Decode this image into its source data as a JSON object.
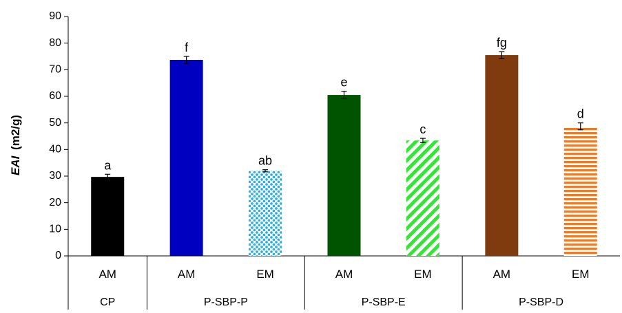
{
  "chart_data": {
    "type": "bar",
    "ylabel": "(m2/g)",
    "ylabel_emphasis": "EAI",
    "ylim": [
      0,
      90
    ],
    "yticks": [
      0,
      10,
      20,
      30,
      40,
      50,
      60,
      70,
      80,
      90
    ],
    "grid": false,
    "categories": [
      {
        "label": "AM",
        "group": "CP",
        "value": 29.7,
        "error": 1.0,
        "significance": "a",
        "color": "#000000",
        "pattern": "solid"
      },
      {
        "label": "AM",
        "group": "P-SBP-P",
        "value": 73.7,
        "error": 1.3,
        "significance": "f",
        "color": "#0000c0",
        "pattern": "solid"
      },
      {
        "label": "EM",
        "group": "P-SBP-P",
        "value": 32.0,
        "error": 0.4,
        "significance": "ab",
        "color": "#2ab0e8",
        "pattern": "dots"
      },
      {
        "label": "AM",
        "group": "P-SBP-E",
        "value": 60.5,
        "error": 1.4,
        "significance": "e",
        "color": "#005400",
        "pattern": "solid"
      },
      {
        "label": "EM",
        "group": "P-SBP-E",
        "value": 43.4,
        "error": 0.8,
        "significance": "c",
        "color": "#33e633",
        "pattern": "diagonal"
      },
      {
        "label": "AM",
        "group": "P-SBP-D",
        "value": 75.5,
        "error": 1.3,
        "significance": "fg",
        "color": "#7f3a0e",
        "pattern": "solid"
      },
      {
        "label": "EM",
        "group": "P-SBP-D",
        "value": 48.7,
        "error": 1.3,
        "significance": "d",
        "color": "#ee7a2b",
        "pattern": "horizontal"
      }
    ],
    "groups": [
      {
        "name": "CP",
        "span": 1
      },
      {
        "name": "P-SBP-P",
        "span": 2
      },
      {
        "name": "P-SBP-E",
        "span": 2
      },
      {
        "name": "P-SBP-D",
        "span": 2
      }
    ]
  }
}
